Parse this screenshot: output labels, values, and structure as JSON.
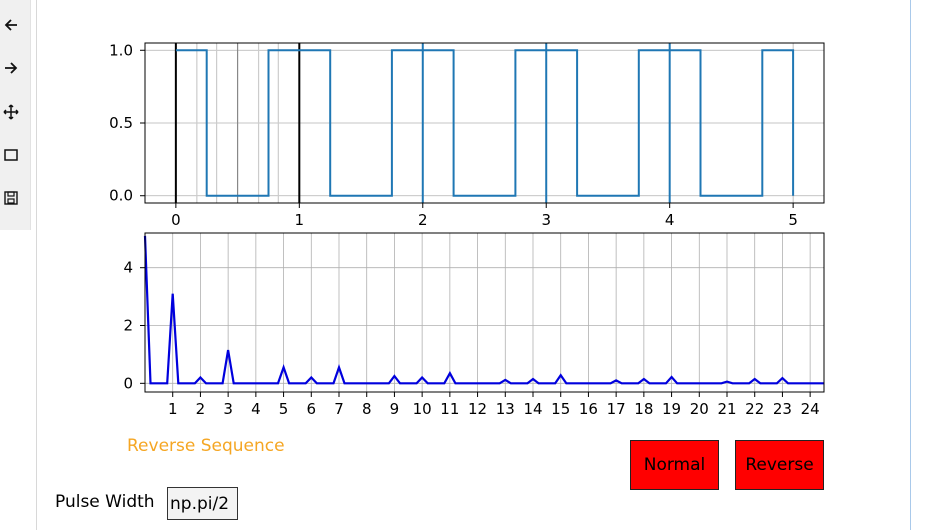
{
  "toolbar": {
    "items": [
      {
        "icon": "back-arrow-icon"
      },
      {
        "icon": "forward-arrow-icon"
      },
      {
        "icon": "pan-move-icon"
      },
      {
        "icon": "zoom-rect-icon"
      },
      {
        "icon": "save-disk-icon"
      }
    ]
  },
  "status_text": "Reverse Sequence",
  "buttons": {
    "normal": "Normal",
    "reverse": "Reverse"
  },
  "pulse_width": {
    "label": "Pulse Width",
    "value": "np.pi/2"
  },
  "colors": {
    "signal_line": "#1f77b4",
    "spectrum_line": "#0000dd",
    "button_bg": "#ff0000",
    "status_text": "#f5a623",
    "grid": "#b0b0b0"
  },
  "chart_data": [
    {
      "type": "line",
      "title": "",
      "xlabel": "",
      "ylabel": "",
      "xlim": [
        -0.25,
        5.25
      ],
      "ylim": [
        -0.05,
        1.05
      ],
      "grid": true,
      "xticks": [
        0,
        1,
        2,
        3,
        4,
        5
      ],
      "yticks": [
        0.0,
        0.5,
        1.0
      ],
      "xtick_labels": [
        "0",
        "1",
        "2",
        "3",
        "4",
        "5"
      ],
      "ytick_labels": [
        "0.0",
        "0.5",
        "1.0"
      ],
      "series": [
        {
          "x": [
            0,
            0.25,
            0.25,
            0.75,
            0.75,
            1.25,
            1.25,
            1.75,
            1.75,
            2.25,
            2.25,
            2.75,
            2.75,
            3.25,
            3.25,
            3.75,
            3.75,
            4.25,
            4.25,
            4.75,
            4.75,
            5.0,
            5.0
          ],
          "y": [
            1,
            1,
            0,
            0,
            1,
            1,
            0,
            0,
            1,
            1,
            0,
            0,
            1,
            1,
            0,
            0,
            1,
            1,
            0,
            0,
            1,
            1,
            0
          ]
        }
      ],
      "vertical_markers": [
        {
          "x": 0,
          "color": "#000000"
        },
        {
          "x": 1,
          "color": "#000000"
        },
        {
          "x": 2,
          "color": "#1f77b4"
        },
        {
          "x": 3,
          "color": "#1f77b4"
        },
        {
          "x": 4,
          "color": "#1f77b4"
        },
        {
          "x": 0.5,
          "color": "#888888"
        },
        {
          "x": 0.17,
          "color": "#cccccc"
        },
        {
          "x": 0.33,
          "color": "#cccccc"
        },
        {
          "x": 0.67,
          "color": "#cccccc"
        },
        {
          "x": 0.83,
          "color": "#cccccc"
        }
      ]
    },
    {
      "type": "line",
      "title": "",
      "xlabel": "",
      "ylabel": "",
      "xlim": [
        0,
        24.5
      ],
      "ylim": [
        -0.3,
        5.2
      ],
      "grid": true,
      "xticks": [
        1,
        2,
        3,
        4,
        5,
        6,
        7,
        8,
        9,
        10,
        11,
        12,
        13,
        14,
        15,
        16,
        17,
        18,
        19,
        20,
        21,
        22,
        23,
        24
      ],
      "yticks": [
        0,
        2,
        4
      ],
      "xtick_labels": [
        "1",
        "2",
        "3",
        "4",
        "5",
        "6",
        "7",
        "8",
        "9",
        "10",
        "11",
        "12",
        "13",
        "14",
        "15",
        "16",
        "17",
        "18",
        "19",
        "20",
        "21",
        "22",
        "23",
        "24"
      ],
      "ytick_labels": [
        "0",
        "2",
        "4"
      ],
      "series": [
        {
          "x": [
            0,
            0.2,
            0.8,
            1,
            1.2,
            1.8,
            2,
            2.2,
            2.8,
            3,
            3.2,
            4.8,
            5,
            5.2,
            5.8,
            6,
            6.2,
            6.8,
            7,
            7.2,
            8.8,
            9,
            9.2,
            9.8,
            10,
            10.2,
            10.8,
            11,
            11.2,
            12.8,
            13,
            13.2,
            13.8,
            14,
            14.2,
            14.8,
            15,
            15.2,
            16.8,
            17,
            17.2,
            17.8,
            18,
            18.2,
            18.8,
            19,
            19.2,
            20.8,
            21,
            21.2,
            21.8,
            22,
            22.2,
            22.8,
            23,
            23.2,
            24.5
          ],
          "y": [
            5.1,
            0,
            0,
            3.1,
            0,
            0,
            0.2,
            0,
            0,
            1.15,
            0,
            0,
            0.55,
            0,
            0,
            0.2,
            0,
            0,
            0.55,
            0,
            0,
            0.25,
            0,
            0,
            0.2,
            0,
            0,
            0.35,
            0,
            0,
            0.12,
            0,
            0,
            0.15,
            0,
            0,
            0.28,
            0,
            0,
            0.1,
            0,
            0,
            0.15,
            0,
            0,
            0.22,
            0,
            0,
            0.06,
            0,
            0,
            0.15,
            0,
            0,
            0.18,
            0,
            0
          ]
        }
      ]
    }
  ]
}
